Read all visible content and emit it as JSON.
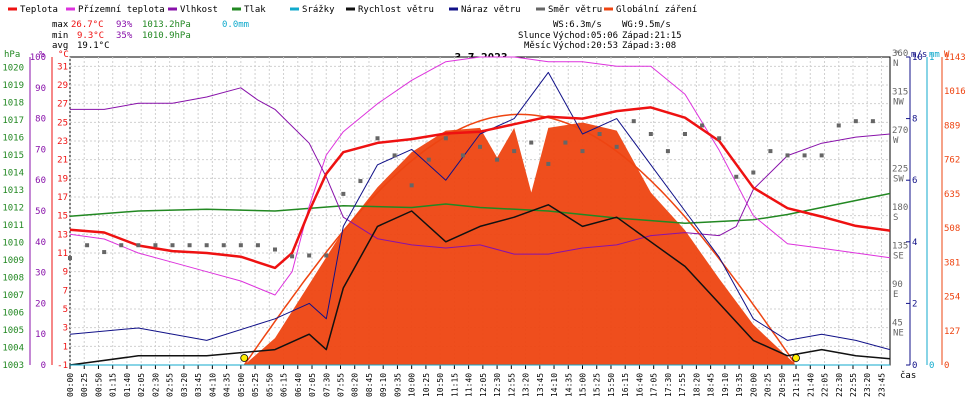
{
  "legend": [
    {
      "label": "Teplota",
      "color": "#ee1111"
    },
    {
      "label": "Přízemní teplota",
      "color": "#dd33dd"
    },
    {
      "label": "Vlhkost",
      "color": "#8811aa"
    },
    {
      "label": "Tlak",
      "color": "#228822"
    },
    {
      "label": "Srážky",
      "color": "#11aacc"
    },
    {
      "label": "Rychlost větru",
      "color": "#111111"
    },
    {
      "label": "Náraz větru",
      "color": "#111188"
    },
    {
      "label": "Směr větru",
      "color": "#666666"
    },
    {
      "label": "Globální záření",
      "color": "#ee4411"
    }
  ],
  "stats": {
    "max": {
      "label": "max",
      "temp": "26.7°C",
      "hum": "93%",
      "press": "1013.2hPa",
      "rain": "0.0mm"
    },
    "min": {
      "label": "min",
      "temp": "9.3°C",
      "hum": "35%",
      "press": "1010.9hPa"
    },
    "avg": {
      "label": "avg",
      "temp": "19.1°C"
    }
  },
  "wind_info": {
    "ws": "WS:6.3m/s",
    "wg": "WG:9.5m/s"
  },
  "sun": {
    "label": "Slunce",
    "rise": "Východ:05:06",
    "set": "Západ:21:15"
  },
  "moon": {
    "label": "Měsíc",
    "rise": "Východ:20:53",
    "set": "Západ:3:08"
  },
  "date_title": "3.7.2023",
  "axis_titles": {
    "hpa": "hPa",
    "percent": "%",
    "celsius": "°C",
    "deg": "°",
    "ms": "m/s",
    "mm": "mm",
    "w": "W",
    "time": "čas"
  },
  "chart_data": {
    "type": "line",
    "title": "3.7.2023",
    "x_ticks": [
      "00:00",
      "00:25",
      "00:50",
      "01:15",
      "01:40",
      "02:05",
      "02:30",
      "02:55",
      "03:20",
      "03:45",
      "04:10",
      "04:35",
      "05:00",
      "05:25",
      "05:50",
      "06:15",
      "06:40",
      "07:05",
      "07:30",
      "07:55",
      "08:20",
      "08:45",
      "09:10",
      "09:35",
      "10:00",
      "10:25",
      "10:50",
      "11:15",
      "11:40",
      "12:05",
      "12:30",
      "12:55",
      "13:20",
      "13:45",
      "14:10",
      "14:35",
      "15:00",
      "15:25",
      "15:50",
      "16:15",
      "16:40",
      "17:05",
      "17:30",
      "17:55",
      "18:20",
      "18:45",
      "19:10",
      "19:35",
      "20:00",
      "20:25",
      "20:50",
      "21:15",
      "21:40",
      "22:05",
      "22:30",
      "22:55",
      "23:20",
      "23:45"
    ],
    "axes": {
      "pressure_hpa": {
        "ticks": [
          "1020",
          "1019",
          "1018",
          "1017",
          "1016",
          "1015",
          "1014",
          "1013",
          "1012",
          "1011",
          "1010",
          "1009",
          "1008",
          "1007",
          "1006",
          "1005",
          "1004",
          "1003"
        ],
        "range": [
          1003,
          1020.6
        ]
      },
      "humidity_pct": {
        "ticks": [
          "100",
          "90",
          "80",
          "70",
          "60",
          "50",
          "40",
          "30",
          "20",
          "10",
          "0"
        ],
        "range": [
          0,
          100
        ]
      },
      "temperature_c": {
        "ticks": [
          "31",
          "29",
          "27",
          "25",
          "23",
          "21",
          "19",
          "17",
          "15",
          "13",
          "11",
          "9",
          "7",
          "5",
          "3",
          "1",
          "-1"
        ],
        "range": [
          -1,
          32
        ]
      },
      "wind_direction_deg": {
        "ticks": [
          "360",
          "315",
          "270",
          "225",
          "180",
          "135",
          "90",
          "45"
        ],
        "dirs": [
          "N",
          "NW",
          "W",
          "SW",
          "S",
          "SE",
          "E",
          "NE"
        ],
        "range": [
          0,
          360
        ]
      },
      "wind_speed_ms": {
        "ticks": [
          "10",
          "8",
          "6",
          "4",
          "2",
          "0"
        ],
        "range": [
          0,
          10
        ]
      },
      "rain_mm": {
        "ticks": [
          "1",
          "0"
        ],
        "range": [
          0,
          1
        ]
      },
      "radiation_w": {
        "ticks": [
          "1143",
          "1016",
          "889",
          "762",
          "635",
          "508",
          "381",
          "254",
          "127",
          "0"
        ],
        "range": [
          0,
          1143
        ]
      }
    },
    "series": [
      {
        "name": "Teplota",
        "unit": "°C",
        "times": [
          0,
          1,
          2,
          3,
          4,
          5,
          6,
          6.5,
          7,
          7.5,
          8,
          9,
          10,
          11,
          12,
          13,
          14,
          15,
          16,
          17,
          18,
          19,
          20,
          21,
          22,
          23,
          24
        ],
        "values": [
          13.5,
          13.2,
          11.8,
          11.2,
          11.0,
          10.6,
          9.4,
          11.0,
          15.5,
          19.5,
          21.8,
          22.8,
          23.2,
          23.8,
          24.0,
          24.8,
          25.6,
          25.4,
          26.2,
          26.6,
          25.5,
          23.0,
          18.0,
          15.8,
          14.9,
          13.9,
          13.4
        ]
      },
      {
        "name": "Přízemní teplota",
        "unit": "°C",
        "times": [
          0,
          1,
          2,
          3,
          4,
          5,
          6,
          6.5,
          7,
          7.5,
          8,
          9,
          10,
          11,
          12,
          13,
          14,
          15,
          16,
          17,
          18,
          19,
          20,
          21,
          22,
          23,
          24
        ],
        "values": [
          13.0,
          12.5,
          11.0,
          10.0,
          9.0,
          8.0,
          6.5,
          9.0,
          16.0,
          21.5,
          24.0,
          27.0,
          29.5,
          31.5,
          32.0,
          32.0,
          31.5,
          31.5,
          31.0,
          31.0,
          28.0,
          22.0,
          15.0,
          12.0,
          11.5,
          11.0,
          10.5
        ]
      },
      {
        "name": "Vlhkost",
        "unit": "%",
        "times": [
          0,
          1,
          2,
          3,
          4,
          5,
          5.5,
          6,
          7,
          7.5,
          8,
          9,
          10,
          11,
          12,
          13,
          14,
          15,
          16,
          17,
          18,
          19,
          19.5,
          20,
          21,
          22,
          23,
          24
        ],
        "values": [
          83,
          83,
          85,
          85,
          87,
          90,
          86,
          83,
          72,
          61,
          48,
          41,
          39,
          38,
          39,
          36,
          36,
          38,
          39,
          42,
          43,
          42,
          45,
          57,
          68,
          72,
          74,
          75
        ]
      },
      {
        "name": "Tlak",
        "unit": "hPa",
        "times": [
          0,
          2,
          4,
          6,
          8,
          10,
          11,
          12,
          14,
          16,
          18,
          20,
          21,
          22,
          23,
          24
        ],
        "values": [
          1011.5,
          1011.8,
          1011.9,
          1011.8,
          1012.1,
          1012.0,
          1012.2,
          1012.0,
          1011.8,
          1011.4,
          1011.1,
          1011.3,
          1011.6,
          1012.0,
          1012.4,
          1012.8
        ]
      },
      {
        "name": "Rychlost větru",
        "unit": "m/s",
        "times": [
          0,
          2,
          4,
          6,
          7,
          7.5,
          8,
          9,
          10,
          11,
          12,
          13,
          14,
          15,
          16,
          17,
          18,
          19,
          20,
          21,
          22,
          23,
          24
        ],
        "values": [
          0,
          0.3,
          0.3,
          0.5,
          1.0,
          0.5,
          2.5,
          4.5,
          5.0,
          4.0,
          4.5,
          4.8,
          5.2,
          4.5,
          4.8,
          4.0,
          3.2,
          2.0,
          0.8,
          0.3,
          0.5,
          0.3,
          0.2
        ]
      },
      {
        "name": "Náraz větru",
        "unit": "m/s",
        "times": [
          0,
          2,
          4,
          6,
          7,
          7.5,
          8,
          9,
          10,
          11,
          12,
          13,
          14,
          15,
          16,
          17,
          18,
          19,
          20,
          21,
          22,
          23,
          24
        ],
        "values": [
          1.0,
          1.2,
          0.8,
          1.5,
          2.0,
          1.5,
          4.5,
          6.5,
          7.0,
          6.0,
          7.5,
          8.0,
          9.5,
          7.5,
          8.0,
          6.5,
          5.0,
          3.5,
          1.5,
          0.8,
          1.0,
          0.8,
          0.5
        ]
      },
      {
        "name": "Globální záření",
        "unit": "W",
        "times": [
          5.1,
          6,
          7,
          8,
          9,
          10,
          11,
          12,
          12.5,
          13,
          13.5,
          14,
          15,
          16,
          17,
          18,
          19,
          20,
          21,
          21.25
        ],
        "values": [
          0,
          100,
          300,
          500,
          660,
          790,
          870,
          880,
          770,
          880,
          640,
          880,
          900,
          870,
          640,
          500,
          320,
          150,
          30,
          0
        ]
      },
      {
        "name": "Srážky",
        "unit": "mm",
        "times": [
          0,
          24
        ],
        "values": [
          0.0,
          0.0
        ]
      }
    ],
    "wind_direction": {
      "name": "Směr větru",
      "unit": "°",
      "times": [
        0,
        0.5,
        1,
        1.5,
        2,
        2.5,
        3,
        3.5,
        4,
        4.5,
        5,
        5.5,
        6,
        6.5,
        7,
        7.5,
        8,
        8.5,
        9,
        9.5,
        10,
        10.5,
        11,
        11.5,
        12,
        12.5,
        13,
        13.5,
        14,
        14.5,
        15,
        15.5,
        16,
        16.5,
        17,
        17.5,
        18,
        18.5,
        19,
        19.5,
        20,
        20.5,
        21,
        21.5,
        22,
        22.5,
        23,
        23.5
      ],
      "values": [
        125,
        140,
        132,
        140,
        140,
        140,
        140,
        140,
        140,
        140,
        140,
        140,
        135,
        127,
        128,
        128,
        200,
        215,
        265,
        245,
        210,
        240,
        265,
        245,
        255,
        240,
        250,
        260,
        235,
        260,
        250,
        270,
        255,
        285,
        270,
        250,
        270,
        280,
        265,
        220,
        225,
        250,
        245,
        245,
        245,
        280,
        285,
        285
      ]
    },
    "sun_marker": {
      "rise": "05:06",
      "set": "21:15"
    },
    "grid": true
  }
}
